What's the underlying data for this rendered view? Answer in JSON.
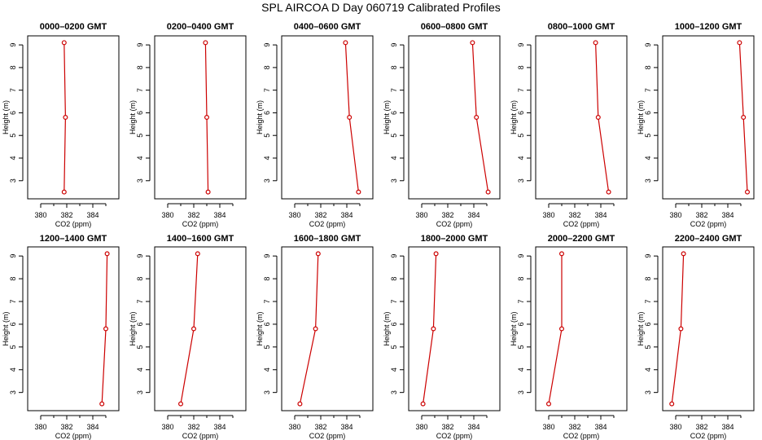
{
  "title": "SPL AIRCOA D  Day 060719  Calibrated Profiles",
  "colors": {
    "line": "#cc0000",
    "axis": "#000000"
  },
  "chart_data": {
    "type": "line",
    "xlabel": "CO2 (ppm)",
    "ylabel": "Height (m)",
    "xlim": [
      379,
      386
    ],
    "ylim": [
      2.2,
      9.4
    ],
    "xticks": [
      380,
      382,
      384
    ],
    "yticks": [
      3,
      4,
      5,
      6,
      7,
      8,
      9
    ],
    "heights": [
      2.5,
      5.8,
      9.1
    ],
    "grid": false,
    "panels": [
      {
        "title": "0000–0200 GMT",
        "x": [
          381.8,
          381.9,
          381.8
        ]
      },
      {
        "title": "0200–0400 GMT",
        "x": [
          383.1,
          383.0,
          382.9
        ]
      },
      {
        "title": "0400–0600 GMT",
        "x": [
          384.9,
          384.2,
          383.9
        ]
      },
      {
        "title": "0600–0800 GMT",
        "x": [
          385.1,
          384.2,
          383.9
        ]
      },
      {
        "title": "0800–1000 GMT",
        "x": [
          384.6,
          383.8,
          383.6
        ]
      },
      {
        "title": "1000–1200 GMT",
        "x": [
          385.5,
          385.2,
          384.9
        ]
      },
      {
        "title": "1200–1400 GMT",
        "x": [
          384.7,
          385.0,
          385.1
        ]
      },
      {
        "title": "1400–1600 GMT",
        "x": [
          381.0,
          382.0,
          382.3
        ]
      },
      {
        "title": "1600–1800 GMT",
        "x": [
          380.4,
          381.6,
          381.8
        ]
      },
      {
        "title": "1800–2000 GMT",
        "x": [
          380.1,
          380.9,
          381.1
        ]
      },
      {
        "title": "2000–2200 GMT",
        "x": [
          380.0,
          381.0,
          381.0
        ]
      },
      {
        "title": "2200–2400 GMT",
        "x": [
          379.7,
          380.4,
          380.6
        ]
      }
    ]
  }
}
